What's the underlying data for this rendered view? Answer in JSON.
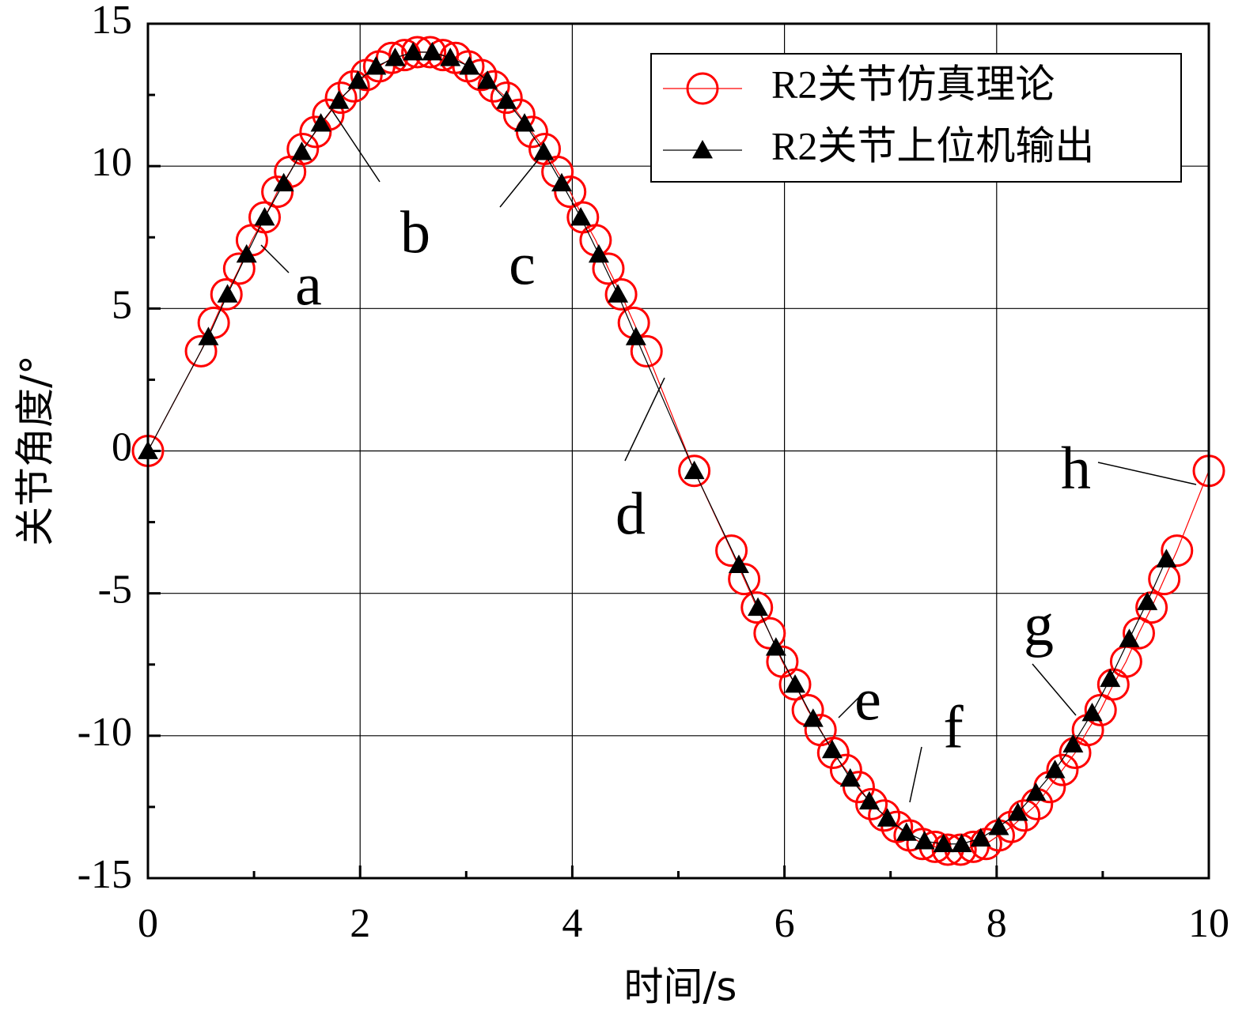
{
  "chart_data": {
    "type": "line",
    "x_label": "时间/s",
    "y_label": "关节角度/°",
    "xlim": [
      0,
      10
    ],
    "xticks": [
      0,
      2,
      4,
      6,
      8,
      10
    ],
    "xminorticks": [
      1,
      3,
      5,
      7,
      9
    ],
    "ylim": [
      -15,
      15
    ],
    "yticks": [
      -15,
      -10,
      -5,
      0,
      5,
      10,
      15
    ],
    "yminorticks": [
      -12.5,
      -7.5,
      -2.5,
      2.5,
      7.5,
      12.5
    ],
    "grid": true,
    "legend": "upper right",
    "annotations": [
      "a",
      "b",
      "c",
      "d",
      "e",
      "f",
      "g",
      "h"
    ],
    "series": [
      {
        "name": "R2关节仿真理论",
        "color": "#ff0000",
        "marker": "circle",
        "x": [
          0,
          0.5,
          0.62,
          0.74,
          0.86,
          0.98,
          1.1,
          1.22,
          1.34,
          1.46,
          1.58,
          1.7,
          1.82,
          1.94,
          2.06,
          2.18,
          2.3,
          2.42,
          2.54,
          2.66,
          2.78,
          2.9,
          3.02,
          3.14,
          3.26,
          3.38,
          3.5,
          3.62,
          3.74,
          3.86,
          3.98,
          4.1,
          4.22,
          4.34,
          4.46,
          4.58,
          4.7,
          5.15,
          5.5,
          5.62,
          5.74,
          5.86,
          5.98,
          6.1,
          6.22,
          6.34,
          6.46,
          6.58,
          6.7,
          6.82,
          6.94,
          7.06,
          7.18,
          7.3,
          7.42,
          7.54,
          7.66,
          7.78,
          7.9,
          8.02,
          8.14,
          8.26,
          8.38,
          8.5,
          8.62,
          8.74,
          8.86,
          8.98,
          9.1,
          9.22,
          9.34,
          9.46,
          9.58,
          9.7,
          10
        ],
        "values": [
          0,
          3.5,
          4.5,
          5.5,
          6.4,
          7.4,
          8.2,
          9.1,
          9.8,
          10.6,
          11.2,
          11.8,
          12.4,
          12.8,
          13.2,
          13.5,
          13.8,
          13.9,
          14,
          14,
          13.9,
          13.8,
          13.5,
          13.2,
          12.8,
          12.4,
          11.8,
          11.2,
          10.6,
          9.8,
          9.1,
          8.2,
          7.4,
          6.4,
          5.5,
          4.5,
          3.5,
          -0.7,
          -3.5,
          -4.5,
          -5.5,
          -6.4,
          -7.4,
          -8.2,
          -9.1,
          -9.8,
          -10.6,
          -11.2,
          -11.8,
          -12.4,
          -12.8,
          -13.2,
          -13.5,
          -13.8,
          -13.9,
          -14,
          -14,
          -13.9,
          -13.8,
          -13.5,
          -13.2,
          -12.8,
          -12.4,
          -11.8,
          -11.2,
          -10.6,
          -9.8,
          -9.1,
          -8.2,
          -7.4,
          -6.4,
          -5.5,
          -4.5,
          -3.5,
          -0.7
        ]
      },
      {
        "name": "R2关节上位机输出",
        "color": "#000000",
        "marker": "triangle",
        "x": [
          0,
          0.57,
          0.75,
          0.93,
          1.1,
          1.28,
          1.45,
          1.63,
          1.8,
          1.98,
          2.15,
          2.33,
          2.5,
          2.68,
          2.85,
          3.03,
          3.2,
          3.38,
          3.55,
          3.73,
          3.9,
          4.08,
          4.25,
          4.43,
          4.6,
          5.15,
          5.57,
          5.75,
          5.92,
          6.1,
          6.27,
          6.45,
          6.62,
          6.8,
          6.97,
          7.15,
          7.32,
          7.5,
          7.67,
          7.85,
          8.02,
          8.2,
          8.37,
          8.55,
          8.72,
          8.9,
          9.07,
          9.25,
          9.42,
          9.6
        ],
        "values": [
          0,
          4,
          5.5,
          6.9,
          8.2,
          9.4,
          10.5,
          11.5,
          12.3,
          13,
          13.5,
          13.8,
          14,
          14,
          13.8,
          13.5,
          13,
          12.3,
          11.5,
          10.5,
          9.4,
          8.2,
          6.9,
          5.5,
          4,
          -0.7,
          -4,
          -5.5,
          -6.9,
          -8.2,
          -9.4,
          -10.5,
          -11.5,
          -12.3,
          -12.9,
          -13.4,
          -13.7,
          -13.8,
          -13.8,
          -13.6,
          -13.2,
          -12.7,
          -12,
          -11.2,
          -10.3,
          -9.2,
          -8,
          -6.6,
          -5.3,
          -3.8
        ]
      }
    ]
  }
}
